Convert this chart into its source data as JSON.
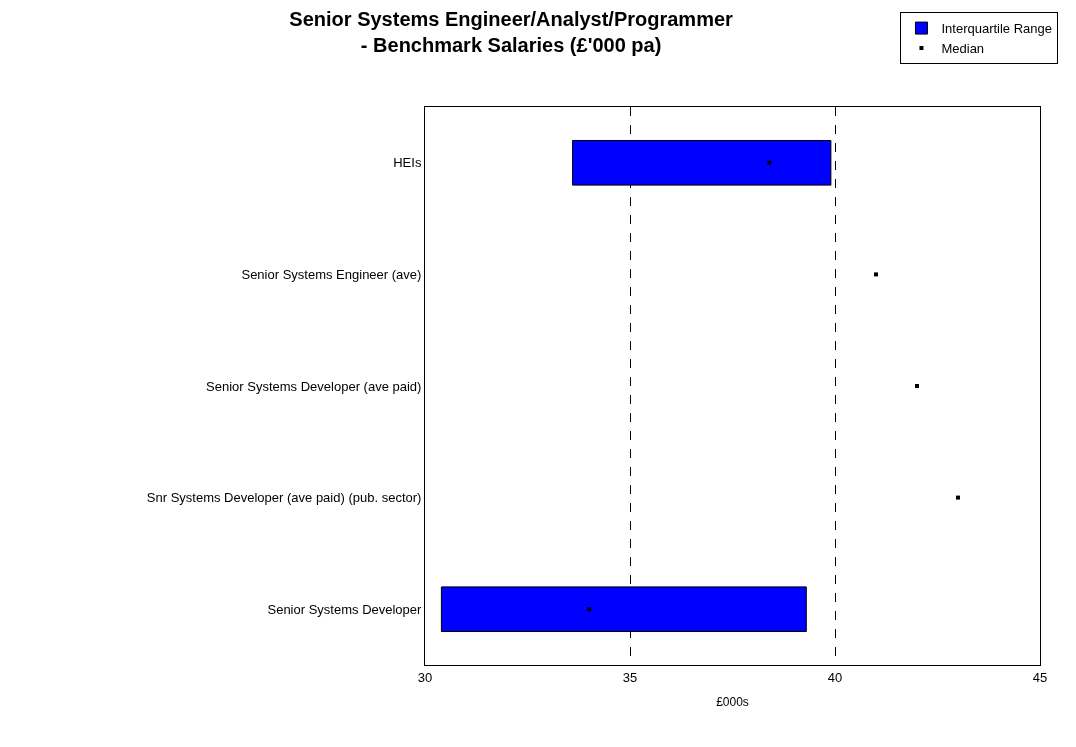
{
  "chart_data": {
    "type": "bar",
    "orientation": "horizontal",
    "title": "Senior Systems Engineer/Analyst/Programmer\n- Benchmark Salaries (£'000 pa)",
    "xlabel": "£000s",
    "categories": [
      "HEIs",
      "Senior Systems Engineer (ave)",
      "Senior Systems Developer (ave paid)",
      "Snr Systems Developer (ave paid) (pub. sector)",
      "Senior Systems Developer"
    ],
    "series": [
      {
        "name": "Interquartile Range",
        "type": "bar",
        "color": "#0000ff",
        "base": [
          33.6,
          null,
          null,
          null,
          30.4
        ],
        "values": [
          6.3,
          null,
          null,
          null,
          8.9
        ]
      },
      {
        "name": "Median",
        "type": "scatter",
        "color": "#000000",
        "values": [
          38.4,
          41,
          42,
          43,
          34.0
        ]
      }
    ],
    "xlim": [
      30,
      45
    ],
    "xticks": [
      30,
      35,
      40,
      45
    ],
    "grid": "x",
    "legend": "top right"
  }
}
